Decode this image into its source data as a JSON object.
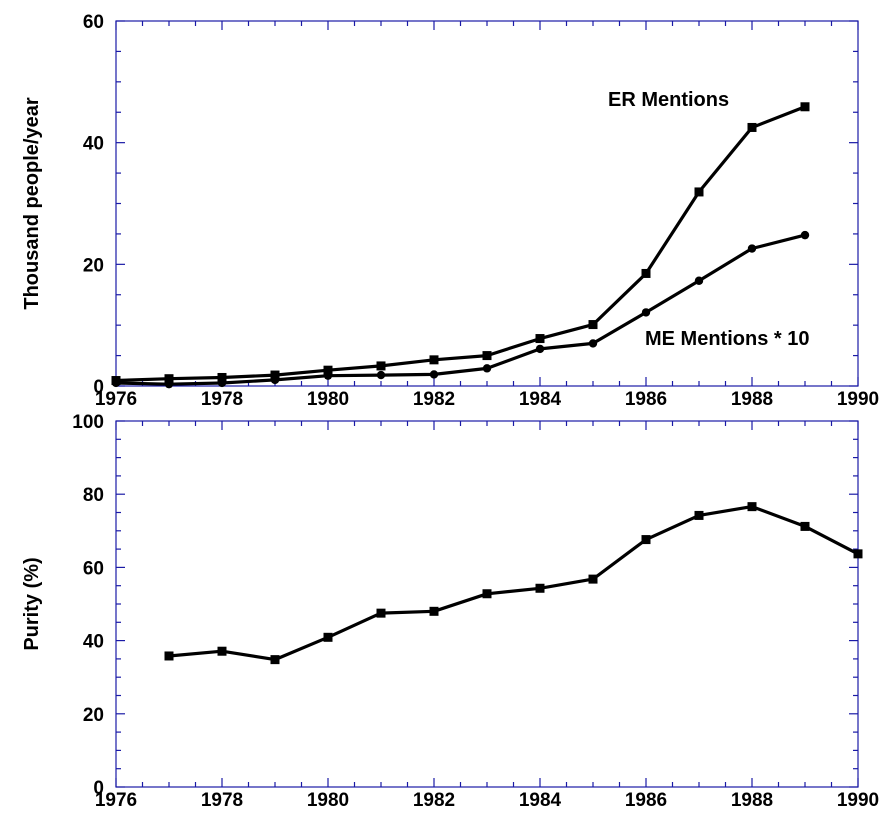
{
  "chart_data": [
    {
      "type": "line",
      "title": "",
      "xlabel": "",
      "ylabel": "Thousand  people/year",
      "xlim": [
        1976,
        1990
      ],
      "ylim": [
        0,
        60
      ],
      "x_ticks": [
        1976,
        1978,
        1980,
        1982,
        1984,
        1986,
        1988,
        1990
      ],
      "y_ticks": [
        0,
        20,
        40,
        60
      ],
      "grid": false,
      "x": [
        1976,
        1977,
        1978,
        1979,
        1980,
        1981,
        1982,
        1983,
        1984,
        1985,
        1986,
        1987,
        1988,
        1989
      ],
      "series": [
        {
          "name": "ER  Mentions",
          "marker": "square",
          "values": [
            0.9,
            1.2,
            1.4,
            1.8,
            2.6,
            3.3,
            4.3,
            5.0,
            7.8,
            10.1,
            18.5,
            31.9,
            42.5,
            45.9
          ]
        },
        {
          "name": "ME  Mentions  *  10",
          "marker": "circle",
          "values": [
            0.5,
            0.3,
            0.5,
            1.0,
            1.7,
            1.8,
            1.9,
            2.9,
            6.1,
            7.0,
            12.1,
            17.3,
            22.6,
            24.8
          ]
        }
      ]
    },
    {
      "type": "line",
      "title": "",
      "xlabel": "",
      "ylabel": "Purity  (%)",
      "xlim": [
        1976,
        1990
      ],
      "ylim": [
        0,
        100
      ],
      "x_ticks": [
        1976,
        1978,
        1980,
        1982,
        1984,
        1986,
        1988,
        1990
      ],
      "y_ticks": [
        0,
        20,
        40,
        60,
        80,
        100
      ],
      "grid": false,
      "x": [
        1977,
        1978,
        1979,
        1980,
        1981,
        1982,
        1983,
        1984,
        1985,
        1986,
        1987,
        1988,
        1989,
        1990
      ],
      "series": [
        {
          "name": "",
          "marker": "square",
          "values": [
            35.8,
            37.1,
            34.8,
            40.9,
            47.5,
            48.0,
            52.8,
            54.3,
            56.8,
            67.6,
            74.2,
            76.6,
            71.2,
            63.7
          ]
        }
      ]
    }
  ],
  "colors": {
    "frame": "#1a1aa6",
    "line": "#000000"
  }
}
